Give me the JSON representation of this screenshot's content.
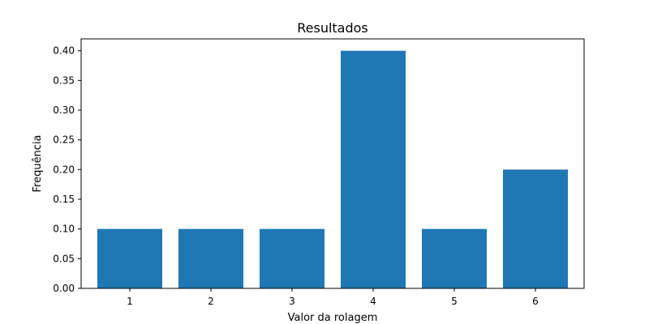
{
  "chart_data": {
    "type": "bar",
    "title": "Resultados",
    "xlabel": "Valor da rolagem",
    "ylabel": "Frequência",
    "categories": [
      "1",
      "2",
      "3",
      "4",
      "5",
      "6"
    ],
    "values": [
      0.1,
      0.1,
      0.1,
      0.4,
      0.1,
      0.2
    ],
    "ylim": [
      0,
      0.42
    ],
    "yticks": [
      "0.00",
      "0.05",
      "0.10",
      "0.15",
      "0.20",
      "0.25",
      "0.30",
      "0.35",
      "0.40"
    ],
    "grid": false,
    "bar_color": "#1f77b4"
  }
}
